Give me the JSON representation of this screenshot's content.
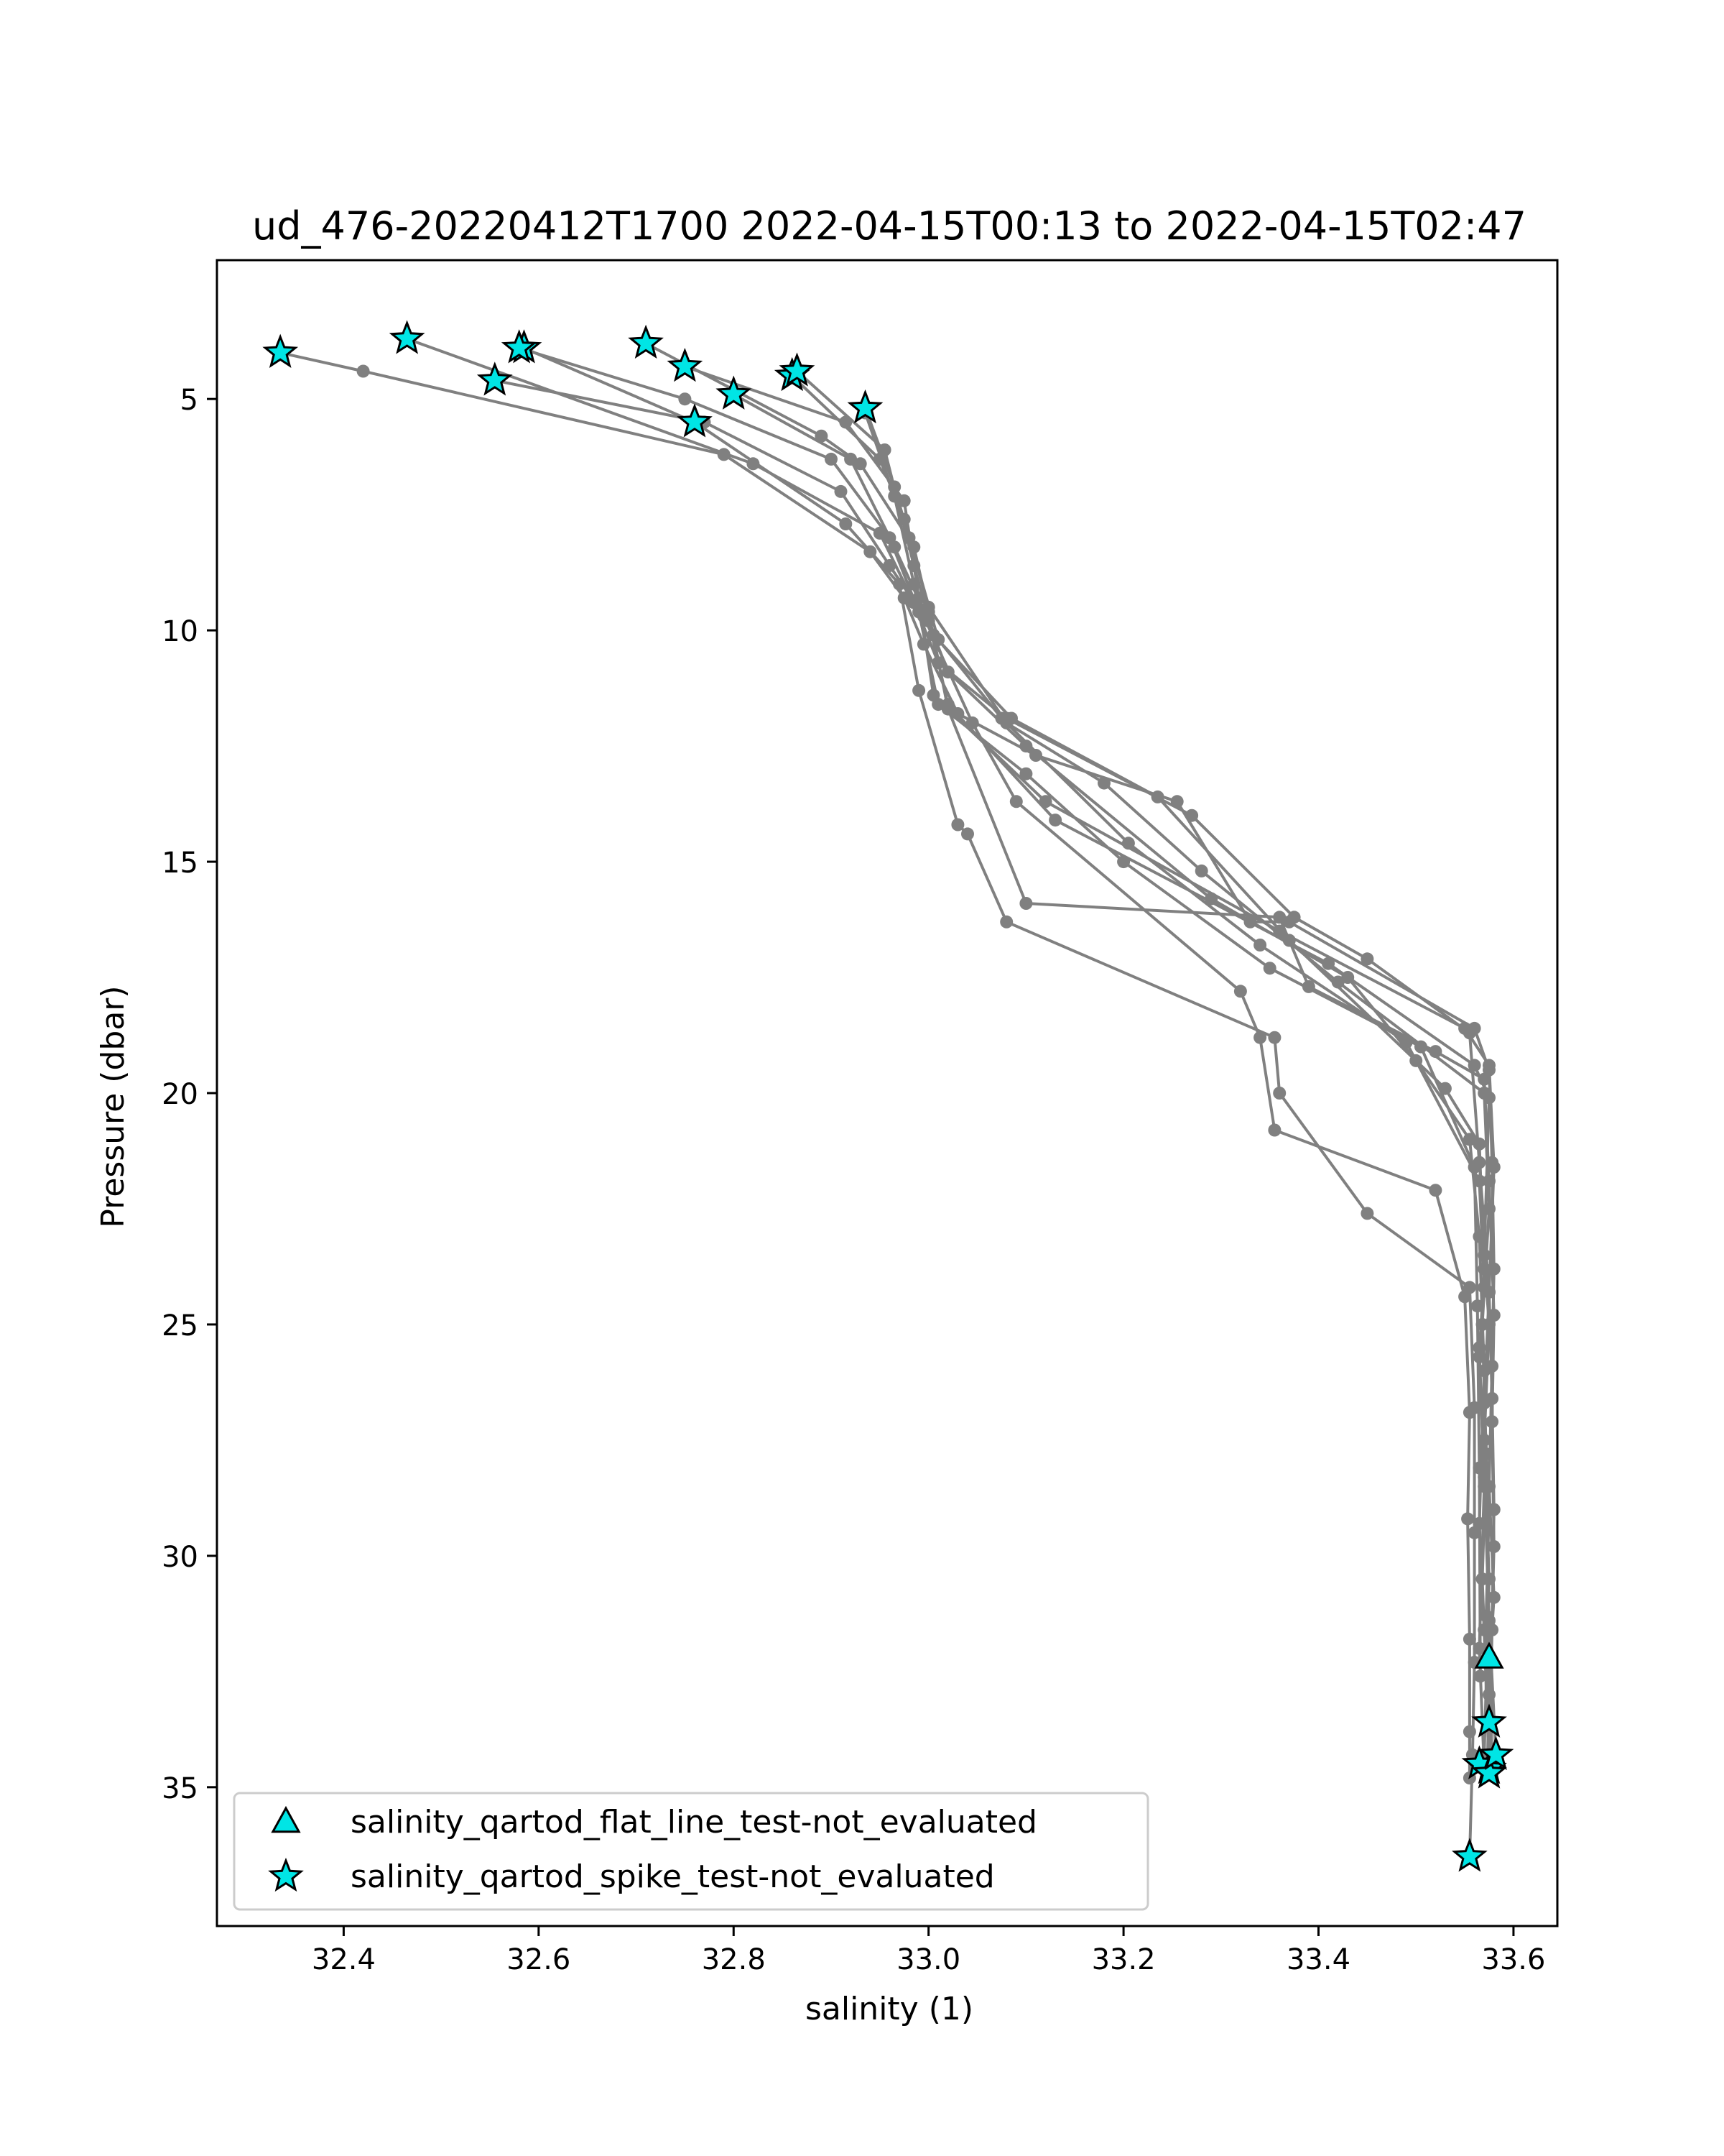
{
  "chart_data": {
    "type": "scatter",
    "title": "ud_476-20220412T1700 2022-04-15T00:13 to 2022-04-15T02:47",
    "xlabel": "salinity (1)",
    "ylabel": "Pressure (dbar)",
    "xlim": [
      32.27,
      33.645
    ],
    "ylim": [
      38.0,
      2.0
    ],
    "y_inverted": true,
    "grid": false,
    "legend_position": "lower-left",
    "x_ticks": [
      "32.4",
      "32.6",
      "32.8",
      "33.0",
      "33.2",
      "33.4",
      "33.6"
    ],
    "y_ticks": [
      "5",
      "10",
      "15",
      "20",
      "25",
      "30",
      "35"
    ],
    "profile_color": "#808080",
    "flag_color": "#00e5e5",
    "profiles": [
      {
        "x": [
          32.335,
          32.42,
          32.79,
          32.94,
          32.975,
          32.995,
          33.03,
          33.11,
          33.255,
          33.33,
          33.37,
          33.56,
          33.575,
          33.578,
          33.58,
          33.578,
          33.575,
          33.58,
          33.576,
          33.578
        ],
        "y": [
          4.0,
          4.4,
          6.2,
          8.3,
          9.3,
          10.3,
          11.8,
          12.7,
          13.7,
          16.3,
          16.3,
          18.6,
          19.5,
          21.5,
          23.8,
          25.9,
          28.5,
          30.9,
          32.2,
          34.7
        ]
      },
      {
        "x": [
          32.465,
          32.82,
          32.95,
          32.985,
          33.01,
          33.08,
          33.27,
          33.375,
          33.45,
          33.555,
          33.565,
          33.575,
          33.57,
          33.575,
          33.572,
          33.575,
          33.573
        ],
        "y": [
          3.7,
          6.4,
          7.9,
          9.4,
          10.7,
          11.9,
          14.0,
          16.2,
          17.1,
          18.7,
          21.5,
          24.3,
          26.7,
          29.0,
          31.3,
          33.0,
          34.7
        ]
      },
      {
        "x": [
          32.555,
          32.77,
          32.91,
          32.96,
          32.995,
          33.045,
          33.09,
          33.32,
          33.34,
          33.355,
          33.52,
          33.55,
          33.555,
          33.553,
          33.555,
          33.555,
          33.555
        ],
        "y": [
          4.6,
          5.5,
          7.0,
          8.6,
          9.7,
          12.0,
          13.7,
          17.8,
          18.8,
          20.8,
          22.1,
          24.4,
          26.9,
          29.2,
          31.8,
          33.8,
          34.8
        ]
      },
      {
        "x": [
          32.585,
          32.76,
          32.915,
          32.97,
          32.99,
          33.03,
          33.04,
          33.08,
          33.355,
          33.36,
          33.45,
          33.555,
          33.56,
          33.56,
          33.56,
          33.558,
          33.555
        ],
        "y": [
          3.9,
          5.5,
          7.7,
          9.0,
          11.3,
          14.2,
          14.4,
          16.3,
          18.8,
          20.0,
          22.6,
          24.2,
          26.8,
          29.5,
          32.3,
          34.3,
          36.5
        ]
      },
      {
        "x": [
          32.71,
          32.89,
          32.93,
          32.985,
          33.0,
          33.02,
          33.1,
          33.36,
          33.39,
          33.52,
          33.57,
          33.575,
          33.58,
          33.578,
          33.58,
          33.575
        ],
        "y": [
          3.8,
          5.8,
          6.4,
          8.2,
          9.6,
          11.7,
          15.9,
          16.2,
          17.7,
          19.1,
          19.7,
          21.9,
          24.8,
          27.1,
          29.8,
          33.6
        ]
      },
      {
        "x": [
          32.75,
          32.915,
          32.975,
          32.99,
          33.005,
          33.12,
          33.36,
          33.55,
          33.575,
          33.58,
          33.575,
          33.578,
          33.58,
          33.578,
          33.575
        ],
        "y": [
          4.3,
          5.5,
          7.2,
          9.3,
          11.4,
          13.7,
          16.5,
          18.6,
          19.4,
          21.6,
          24.3,
          26.6,
          29.0,
          31.6,
          34.3
        ]
      },
      {
        "x": [
          32.8,
          32.92,
          32.965,
          33.0,
          33.02,
          33.13,
          33.41,
          33.56,
          33.575,
          33.57,
          33.575,
          33.57,
          33.575,
          33.57
        ],
        "y": [
          4.9,
          6.3,
          8.2,
          9.8,
          11.6,
          14.1,
          17.2,
          19.4,
          20.1,
          23.5,
          25.0,
          27.5,
          30.5,
          34.3
        ]
      },
      {
        "x": [
          32.86,
          32.95,
          32.975,
          33.01,
          33.075,
          33.205,
          33.34,
          33.49,
          33.565,
          33.57,
          33.565,
          33.57,
          33.565,
          33.57
        ],
        "y": [
          4.5,
          6.3,
          7.6,
          10.2,
          11.9,
          14.6,
          16.8,
          18.9,
          21.9,
          24.2,
          25.5,
          28.5,
          32.0,
          34.6
        ]
      },
      {
        "x": [
          32.865,
          32.955,
          32.985,
          33.005,
          33.085,
          33.235,
          33.37,
          33.53,
          33.565,
          33.57,
          33.565,
          33.57,
          33.575,
          33.582
        ],
        "y": [
          4.4,
          6.1,
          8.6,
          10.1,
          11.9,
          13.6,
          16.7,
          19.9,
          21.1,
          23.8,
          25.7,
          28.3,
          31.4,
          34.3
        ]
      },
      {
        "x": [
          32.935,
          32.965,
          32.98,
          33.0,
          33.08,
          33.18,
          33.28,
          33.42,
          33.57,
          33.575,
          33.568,
          33.572,
          33.568,
          33.575
        ],
        "y": [
          5.2,
          6.9,
          8.0,
          9.5,
          12.0,
          13.3,
          15.2,
          17.6,
          20.0,
          22.5,
          25.0,
          27.8,
          30.5,
          34.6
        ]
      },
      {
        "x": [
          32.935,
          32.965,
          32.985,
          33.02,
          33.1,
          33.29,
          33.43,
          33.5,
          33.555,
          33.565,
          33.57,
          33.565,
          33.57,
          33.575
        ],
        "y": [
          5.3,
          7.1,
          9.0,
          10.9,
          12.5,
          15.8,
          17.5,
          19.3,
          21.0,
          23.1,
          26.0,
          29.3,
          31.6,
          33.6
        ]
      },
      {
        "x": [
          32.58,
          32.75,
          32.9,
          32.96,
          32.99,
          33.01,
          33.1,
          33.2,
          33.35,
          33.505,
          33.56,
          33.563,
          33.565,
          33.566
        ],
        "y": [
          3.9,
          5.0,
          6.3,
          8.0,
          9.6,
          11.6,
          13.1,
          15.0,
          17.3,
          19.0,
          21.6,
          24.6,
          28.1,
          32.6
        ]
      }
    ],
    "series": [
      {
        "name": "salinity_qartod_flat_line_test-not_evaluated",
        "marker": "triangle",
        "x": [
          33.575
        ],
        "y": [
          32.2
        ]
      },
      {
        "name": "salinity_qartod_spike_test-not_evaluated",
        "marker": "star",
        "x": [
          32.335,
          32.465,
          32.555,
          32.585,
          32.58,
          32.71,
          32.75,
          32.8,
          32.76,
          32.86,
          32.865,
          32.935,
          33.575,
          33.575,
          33.565,
          33.575,
          33.582,
          33.555
        ],
        "y": [
          4.0,
          3.7,
          4.6,
          3.9,
          3.9,
          3.8,
          4.3,
          4.9,
          5.5,
          4.5,
          4.4,
          5.2,
          33.6,
          34.6,
          34.5,
          34.7,
          34.3,
          36.5
        ]
      }
    ]
  }
}
